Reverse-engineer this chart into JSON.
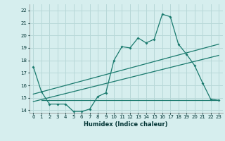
{
  "xlabel": "Humidex (Indice chaleur)",
  "xlim": [
    -0.5,
    23.5
  ],
  "ylim": [
    13.8,
    22.5
  ],
  "yticks": [
    14,
    15,
    16,
    17,
    18,
    19,
    20,
    21,
    22
  ],
  "xticks": [
    0,
    1,
    2,
    3,
    4,
    5,
    6,
    7,
    8,
    9,
    10,
    11,
    12,
    13,
    14,
    15,
    16,
    17,
    18,
    19,
    20,
    21,
    22,
    23
  ],
  "bg_color": "#d6eeee",
  "grid_color": "#b8d8d8",
  "line_color": "#1a7a6e",
  "main_line": {
    "x": [
      0,
      1,
      2,
      3,
      4,
      5,
      6,
      7,
      8,
      9,
      10,
      11,
      12,
      13,
      14,
      15,
      16,
      17,
      18,
      19,
      20,
      21,
      22,
      23
    ],
    "y": [
      17.5,
      15.5,
      14.5,
      14.5,
      14.5,
      13.9,
      13.9,
      14.1,
      15.1,
      15.4,
      18.0,
      19.1,
      19.0,
      19.8,
      19.4,
      19.7,
      21.7,
      21.5,
      19.3,
      18.5,
      17.6,
      16.2,
      14.9,
      14.8
    ]
  },
  "trend_line1": {
    "x": [
      0,
      23
    ],
    "y": [
      15.3,
      19.3
    ]
  },
  "trend_line2": {
    "x": [
      0,
      23
    ],
    "y": [
      14.7,
      18.4
    ]
  },
  "flat_line": {
    "x": [
      1,
      23
    ],
    "y": [
      14.8,
      14.8
    ]
  }
}
